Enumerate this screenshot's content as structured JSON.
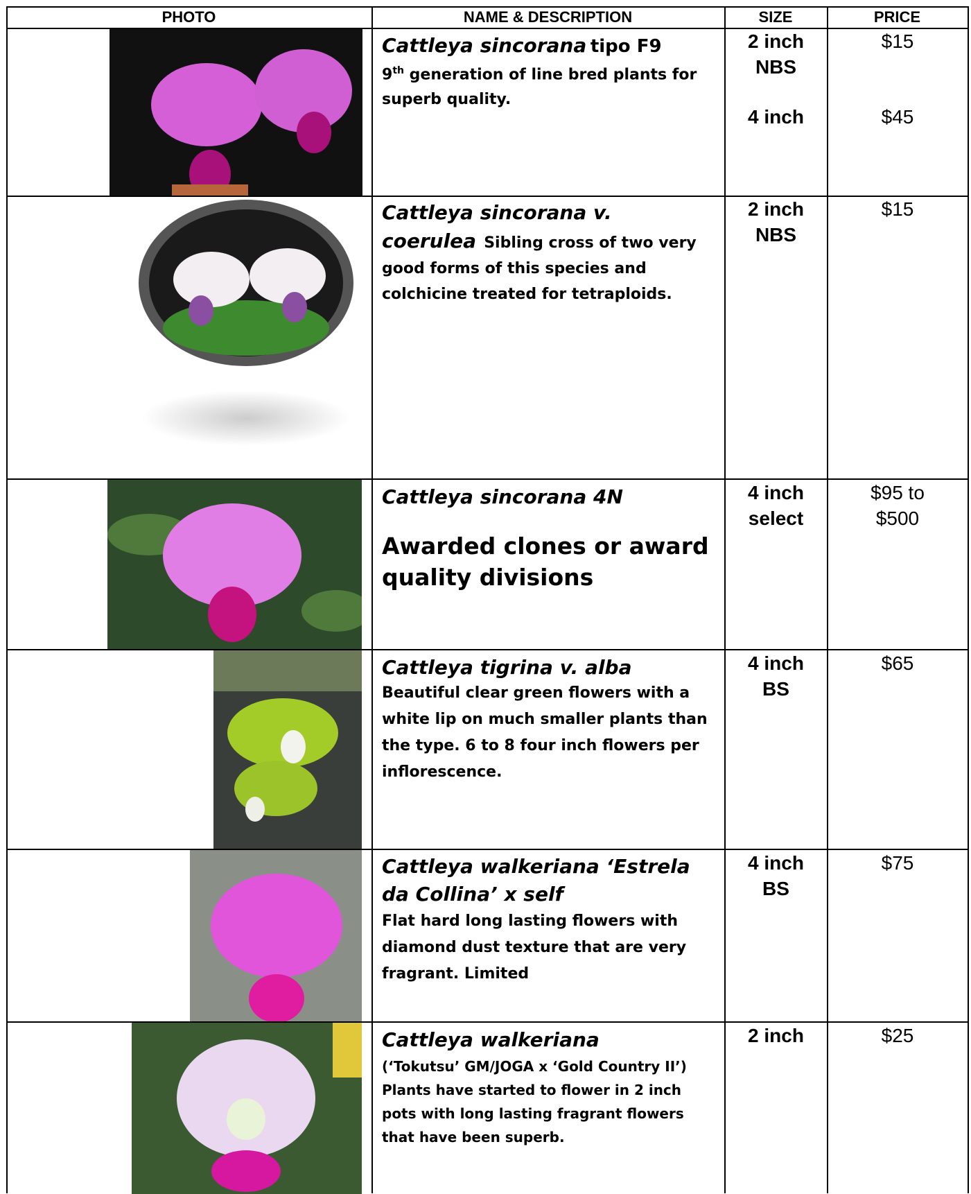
{
  "header": {
    "photo": "PHOTO",
    "name": "NAME & DESCRIPTION",
    "size": "SIZE",
    "price": "PRICE"
  },
  "rows": [
    {
      "name_italic": "Cattleya sincorana",
      "name_rest": "tipo F9",
      "desc_num": "9",
      "desc_sup": "th",
      "description": "generation of line bred plants for superb quality.",
      "offers": [
        {
          "size": [
            "2 inch",
            "NBS"
          ],
          "price": [
            "$15"
          ]
        },
        {
          "size": [
            "4 inch"
          ],
          "price": [
            "$45"
          ]
        }
      ]
    },
    {
      "name_italic": "Cattleya sincorana v. coerulea",
      "description": "Sibling cross of two very good forms of this species and colchicine treated for tetraploids.",
      "offers": [
        {
          "size": [
            "2 inch",
            "NBS"
          ],
          "price": [
            "$15"
          ]
        }
      ]
    },
    {
      "name_italic": "Cattleya sincorana 4N",
      "description": "Awarded clones or award quality divisions",
      "offers": [
        {
          "size": [
            "4 inch",
            "select"
          ],
          "price": [
            "$95 to",
            "$500"
          ]
        }
      ]
    },
    {
      "name_italic": "Cattleya tigrina v. alba",
      "description": "Beautiful clear green flowers with a white lip on much smaller plants than the type.  6 to 8 four inch flowers per inflorescence.",
      "offers": [
        {
          "size": [
            "4 inch",
            "BS"
          ],
          "price": [
            "$65"
          ]
        }
      ]
    },
    {
      "name_italic": "Cattleya walkeriana ‘Estrela da Collina’ x self",
      "description": "Flat hard long lasting flowers with diamond dust texture that are very fragrant.  Limited",
      "offers": [
        {
          "size": [
            "4 inch",
            "BS"
          ],
          "price": [
            "$75"
          ]
        }
      ]
    },
    {
      "name_italic": "Cattleya walkeriana",
      "description": "(‘Tokutsu’ GM/JOGA x ‘Gold Country II’)  Plants have started to flower in 2 inch pots with long lasting fragrant flowers that have been superb.",
      "offers": [
        {
          "size": [
            "2 inch"
          ],
          "price": [
            "$25"
          ]
        }
      ]
    }
  ]
}
